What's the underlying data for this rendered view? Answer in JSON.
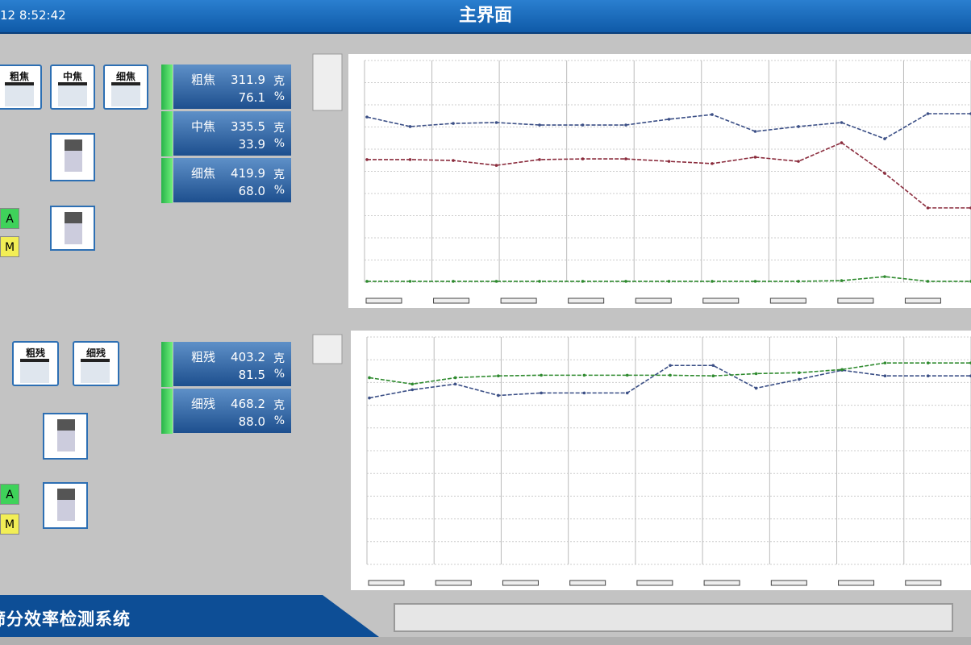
{
  "header": {
    "clock": "12 8:52:42",
    "title": "主界面"
  },
  "upper": {
    "buttons": [
      "粗焦",
      "中焦",
      "细焦"
    ],
    "auto": "A",
    "manual": "M",
    "readouts": [
      {
        "name": "粗焦",
        "mass": "311.9",
        "mass_unit": "克",
        "ratio": "76.1",
        "ratio_unit": "%"
      },
      {
        "name": "中焦",
        "mass": "335.5",
        "mass_unit": "克",
        "ratio": "33.9",
        "ratio_unit": "%"
      },
      {
        "name": "细焦",
        "mass": "419.9",
        "mass_unit": "克",
        "ratio": "68.0",
        "ratio_unit": "%"
      }
    ]
  },
  "lower": {
    "buttons": [
      "粗残",
      "细残"
    ],
    "auto": "A",
    "manual": "M",
    "readouts": [
      {
        "name": "粗残",
        "mass": "403.2",
        "mass_unit": "克",
        "ratio": "81.5",
        "ratio_unit": "%"
      },
      {
        "name": "细残",
        "mass": "468.2",
        "mass_unit": "克",
        "ratio": "88.0",
        "ratio_unit": "%"
      }
    ]
  },
  "trends": [
    {
      "type": "line",
      "ylim": [
        0,
        100
      ],
      "series": [
        {
          "color": "#3b4f86",
          "values": [
            74.5,
            70.2,
            71.6,
            72,
            70.9,
            70.9,
            70.9,
            73.5,
            75.6,
            68,
            70.2,
            72,
            64.7,
            76,
            76
          ]
        },
        {
          "color": "#8a2b3c",
          "values": [
            55.3,
            55.3,
            54.9,
            52.7,
            55.3,
            55.6,
            55.6,
            54.5,
            53.5,
            56.4,
            54.5,
            62.9,
            49.1,
            33.5,
            33.5
          ]
        },
        {
          "color": "#2e8a2e",
          "values": [
            0.4,
            0.4,
            0.4,
            0.4,
            0.4,
            0.4,
            0.4,
            0.4,
            0.4,
            0.4,
            0.4,
            0.7,
            2.5,
            0.4,
            0.4
          ]
        }
      ]
    },
    {
      "type": "line",
      "ylim": [
        0,
        100
      ],
      "series": [
        {
          "color": "#3b4f86",
          "values": [
            73.2,
            76.8,
            79.3,
            74.3,
            75.4,
            75.4,
            75.4,
            87.5,
            87.5,
            77.5,
            81.4,
            85.4,
            82.9,
            82.9,
            82.9
          ]
        },
        {
          "color": "#2e8a2e",
          "values": [
            82.1,
            79.3,
            82.1,
            82.9,
            83.2,
            83.2,
            83.2,
            83.2,
            82.9,
            83.9,
            84.3,
            85.7,
            88.6,
            88.6,
            88.6
          ]
        }
      ]
    }
  ],
  "footer": {
    "system": "筛分效率检测系统"
  }
}
